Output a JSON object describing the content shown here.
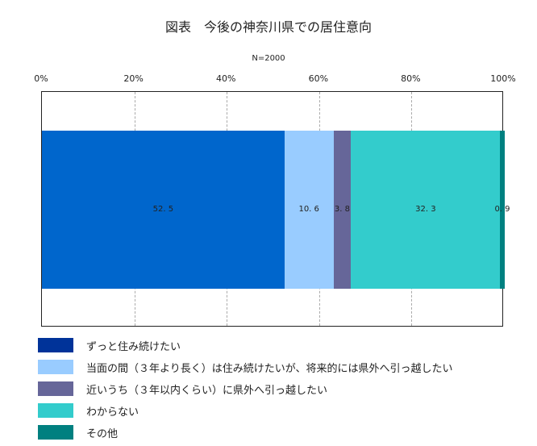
{
  "chart_data": {
    "type": "bar",
    "orientation": "horizontal-stacked",
    "title": "図表　今後の神奈川県での居住意向",
    "subtitle": "N=2000",
    "xlim": [
      0,
      100
    ],
    "ticks": [
      "0%",
      "20%",
      "40%",
      "60%",
      "80%",
      "100%"
    ],
    "tick_values": [
      0,
      20,
      40,
      60,
      80,
      100
    ],
    "grid": true,
    "legend_placement": "bottom",
    "series": [
      {
        "name": "ずっと住み続けたい",
        "value": 52.5,
        "label": "52. 5",
        "color": "#0066cc"
      },
      {
        "name": "当面の間（３年より長く）は住み続けたいが、将来的には県外へ引っ越したい",
        "value": 10.6,
        "label": "10. 6",
        "color": "#99ccff"
      },
      {
        "name": "近いうち（３年以内くらい）に県外へ引っ越したい",
        "value": 3.8,
        "label": "3. 8",
        "color": "#666699"
      },
      {
        "name": "わからない",
        "value": 32.3,
        "label": "32. 3",
        "color": "#33cccc"
      },
      {
        "name": "その他",
        "value": 0.9,
        "label": "0. 9",
        "color": "#008080"
      }
    ],
    "legend_colors": [
      "#003399",
      "#99ccff",
      "#666699",
      "#33cccc",
      "#008080"
    ]
  }
}
